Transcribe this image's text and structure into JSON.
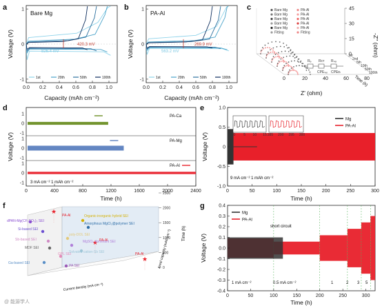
{
  "figure": {
    "watermark": "@ 能源学人"
  },
  "chart_data": [
    {
      "id": "a",
      "panel_label": "a",
      "type": "line",
      "title": "Bare Mg",
      "xlabel": "Capacity (mAh cm⁻²)",
      "ylabel": "Voltage (V)",
      "xlim": [
        0,
        1.1
      ],
      "ylim": [
        -1.1,
        1.1
      ],
      "xticks": [
        "0.0",
        "0.2",
        "0.4",
        "0.6",
        "0.8",
        "1.0"
      ],
      "yticks": [
        "-1",
        "0",
        "1"
      ],
      "annotations": [
        {
          "text": "826.4 mV",
          "color": "#7ec8e3"
        },
        {
          "text": "420.3 mV",
          "color": "#c0392b"
        }
      ],
      "series": [
        {
          "name": "1st",
          "color": "#8fd3ea",
          "plating_v": -0.2,
          "strip_v": 0.62,
          "end_x": 1.02,
          "overshoot": -0.45
        },
        {
          "name": "20th",
          "color": "#4aa3c9",
          "plating_v": -0.14,
          "strip_v": 0.28,
          "end_x": 0.98,
          "overshoot": -0.25
        },
        {
          "name": "50th",
          "color": "#2b6f9e",
          "plating_v": -0.12,
          "strip_v": 0.2,
          "end_x": 0.85,
          "overshoot": -0.2
        },
        {
          "name": "100th",
          "color": "#0b2c5c",
          "plating_v": -0.1,
          "strip_v": 0.15,
          "end_x": 0.74,
          "overshoot": -0.15
        }
      ],
      "legend": [
        "1st",
        "20th",
        "50th",
        "100th"
      ]
    },
    {
      "id": "b",
      "panel_label": "b",
      "type": "line",
      "title": "PA-Al",
      "xlabel": "Capacity (mAh cm⁻²)",
      "ylabel": "Voltage (V)",
      "xlim": [
        0,
        1.1
      ],
      "ylim": [
        -1.1,
        1.1
      ],
      "xticks": [
        "0.0",
        "0.2",
        "0.4",
        "0.6",
        "0.8",
        "1.0"
      ],
      "yticks": [
        "-1",
        "0",
        "1"
      ],
      "annotations": [
        {
          "text": "563.2 mV",
          "color": "#7ec8e3"
        },
        {
          "text": "269.9 mV",
          "color": "#c0392b"
        }
      ],
      "series": [
        {
          "name": "1st",
          "color": "#8fd3ea",
          "plating_v": -0.12,
          "strip_v": 0.5,
          "end_x": 1.0,
          "overshoot": -0.3
        },
        {
          "name": "20th",
          "color": "#4aa3c9",
          "plating_v": -0.1,
          "strip_v": 0.2,
          "end_x": 0.98,
          "overshoot": -0.18
        },
        {
          "name": "50th",
          "color": "#2b6f9e",
          "plating_v": -0.08,
          "strip_v": 0.14,
          "end_x": 0.9,
          "overshoot": -0.14
        },
        {
          "name": "100th",
          "color": "#0b2c5c",
          "plating_v": -0.07,
          "strip_v": 0.12,
          "end_x": 0.8,
          "overshoot": -0.12
        }
      ],
      "legend": [
        "1st",
        "20th",
        "50th",
        "100th"
      ]
    },
    {
      "id": "c",
      "panel_label": "c",
      "type": "scatter",
      "xlabel": "Z' (ohm)",
      "ylabel": "-Z'' (ohm)",
      "depth_label": "Time (h)",
      "xticks": [
        "0",
        "20",
        "40",
        "60",
        "80"
      ],
      "zticks": [
        "0",
        "15",
        "30",
        "45"
      ],
      "depth_ticks": [
        "1st",
        "2nd",
        "5th",
        "10th",
        "50th",
        "100th"
      ],
      "legend_left": [
        "Bare Mg",
        "Bare Mg",
        "Bare Mg",
        "Bare Mg",
        "Bare Mg",
        "Fitting"
      ],
      "legend_right": [
        "PA-Al",
        "PA-Al",
        "PA-Al",
        "PA-Al",
        "PA-Al",
        "Fitting"
      ],
      "circuit_labels": [
        "Rₑ",
        "Rᴄᴛ",
        "Rₛₑᵢ",
        "CPEₛₑᵢ",
        "CPEᴅₗ"
      ]
    },
    {
      "id": "d",
      "panel_label": "d",
      "type": "line",
      "xlabel": "Time (h)",
      "ylabel": "Voltage (V)",
      "xlim": [
        0,
        2400
      ],
      "xticks": [
        "0",
        "400",
        "800",
        "1200",
        "1600",
        "2000",
        "2400"
      ],
      "yticks": [
        "-1",
        "0",
        "1"
      ],
      "condition": "3 mA cm⁻² 1 mAh cm⁻²",
      "series": [
        {
          "name": "PA-Ca",
          "color": "#6b8e23",
          "end_h": 1160,
          "amp": 0.15
        },
        {
          "name": "PA-Mg",
          "color": "#5b7fbf",
          "end_h": 1380,
          "amp": 0.25
        },
        {
          "name": "PA-Al",
          "color": "#e8202a",
          "end_h": 2400,
          "amp": 0.12
        }
      ]
    },
    {
      "id": "e",
      "panel_label": "e",
      "type": "line",
      "xlabel": "Time (h)",
      "ylabel": "Voltage (V)",
      "xlim": [
        0,
        300
      ],
      "ylim": [
        -1.0,
        1.0
      ],
      "xticks": [
        "0",
        "50",
        "100",
        "150",
        "200",
        "250",
        "300"
      ],
      "yticks": [
        "-1.0",
        "-0.5",
        "0",
        "0.5",
        "1.0"
      ],
      "condition": "9 mA cm⁻² 1 mAh cm⁻²",
      "inset_left_ticks": [
        "0",
        "5",
        "10",
        "15"
      ],
      "inset_right_ticks": [
        "285",
        "290",
        "295",
        "300"
      ],
      "series": [
        {
          "name": "Mg",
          "color": "#333333",
          "end_h": 60,
          "amp": 0.45
        },
        {
          "name": "PA-Al",
          "color": "#e8202a",
          "end_h": 300,
          "amp": 0.35
        }
      ]
    },
    {
      "id": "f",
      "panel_label": "f",
      "type": "scatter",
      "xlabel": "Current density (mA cm⁻²)",
      "ylabel": "Areal capacity (mAh cm⁻²)",
      "zlabel": "Time (h)",
      "zticks": [
        "0",
        "500",
        "1000",
        "1500",
        "2000",
        "2500"
      ],
      "points": [
        {
          "label": "PA-Al",
          "color": "#e8202a",
          "star": true
        },
        {
          "label": "PA-Al",
          "color": "#e8202a",
          "star": true
        },
        {
          "label": "PA-Al",
          "color": "#e8202a",
          "star": true
        },
        {
          "label": "dPAN-Mg(CF₃SO₃)₂ SEI",
          "color": "#8a4fd1"
        },
        {
          "label": "Si-based SEI",
          "color": "#6c4fd1"
        },
        {
          "label": "Sb-based SEI",
          "color": "#d08bc4"
        },
        {
          "label": "MDF SEI",
          "color": "#666666"
        },
        {
          "label": "GPL SEI",
          "color": "#e38bb9"
        },
        {
          "label": "Ga-based SEI",
          "color": "#5a8fc7"
        },
        {
          "label": "PA SEI",
          "color": "#9b59b6"
        },
        {
          "label": "Organic-inorganic hybrid SEI",
          "color": "#d4b106"
        },
        {
          "label": "Amorphous MgCl₂@polymer SEI",
          "color": "#2f6fa8"
        },
        {
          "label": "poly-DOL SEI",
          "color": "#e3c97a"
        },
        {
          "label": "MgSO₄ dominant SEI",
          "color": "#b07fd9"
        },
        {
          "label": "Solvated cation-Sb SEI",
          "color": "#9ec6d8"
        }
      ]
    },
    {
      "id": "g",
      "panel_label": "g",
      "type": "line",
      "xlabel": "Time (h)",
      "ylabel": "Voltage (V)",
      "xlim": [
        0,
        320
      ],
      "ylim": [
        -0.4,
        0.4
      ],
      "xticks": [
        "0",
        "50",
        "100",
        "150",
        "200",
        "250",
        "300"
      ],
      "yticks": [
        "-0.4",
        "-0.3",
        "-0.2",
        "-0.1",
        "0.0",
        "0.1",
        "0.2",
        "0.3",
        "0.4"
      ],
      "annotation": "short circuit",
      "rate_labels": [
        "1 mA cm⁻²",
        "0.5 mA cm⁻²",
        "1",
        "2",
        "3",
        "5"
      ],
      "segments": [
        0,
        100,
        200,
        260,
        290,
        310,
        320
      ],
      "series": [
        {
          "name": "Mg",
          "color": "#333333",
          "end_h": 120
        },
        {
          "name": "PA-Al",
          "color": "#e8202a",
          "end_h": 320
        }
      ]
    }
  ]
}
